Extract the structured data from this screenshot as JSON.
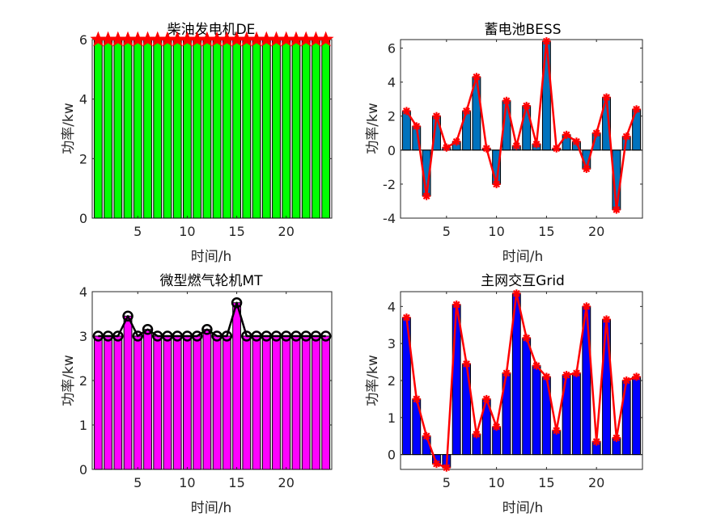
{
  "figure": {
    "background": "#ffffff"
  },
  "chart_data": [
    {
      "type": "bar",
      "title": "柴油发电机DE",
      "xlabel": "时间/h",
      "ylabel": "功率/kw",
      "x": [
        1,
        2,
        3,
        4,
        5,
        6,
        7,
        8,
        9,
        10,
        11,
        12,
        13,
        14,
        15,
        16,
        17,
        18,
        19,
        20,
        21,
        22,
        23,
        24
      ],
      "values": [
        6,
        6,
        6,
        6,
        6,
        6,
        6,
        6,
        6,
        6,
        6,
        6,
        6,
        6,
        6,
        6,
        6,
        6,
        6,
        6,
        6,
        6,
        6,
        6
      ],
      "xlim": [
        0.4,
        24.6
      ],
      "ylim": [
        0,
        6
      ],
      "xticks": [
        5,
        10,
        15,
        20
      ],
      "yticks": [
        0,
        2,
        4,
        6
      ],
      "bar_color": "#00ff00",
      "line_color": "#ff0000",
      "marker": "star"
    },
    {
      "type": "bar",
      "title": "蓄电池BESS",
      "xlabel": "时间/h",
      "ylabel": "功率/kw",
      "x": [
        1,
        2,
        3,
        4,
        5,
        6,
        7,
        8,
        9,
        10,
        11,
        12,
        13,
        14,
        15,
        16,
        17,
        18,
        19,
        20,
        21,
        22,
        23,
        24
      ],
      "values": [
        2.3,
        1.4,
        -2.7,
        2.0,
        0.15,
        0.5,
        2.3,
        4.3,
        0.1,
        -2.0,
        2.9,
        0.25,
        2.6,
        0.35,
        6.4,
        0.1,
        0.9,
        0.5,
        -1.1,
        1.0,
        3.1,
        -3.5,
        0.8,
        2.4
      ],
      "xlim": [
        0.4,
        24.6
      ],
      "ylim": [
        -4,
        6.5
      ],
      "xticks": [
        5,
        10,
        15,
        20
      ],
      "yticks": [
        -4,
        -2,
        0,
        2,
        4,
        6
      ],
      "bar_color": "#0072bd",
      "line_color": "#ff0000",
      "marker": "asterisk"
    },
    {
      "type": "bar",
      "title": "微型燃气轮机MT",
      "xlabel": "时间/h",
      "ylabel": "功率/kw",
      "x": [
        1,
        2,
        3,
        4,
        5,
        6,
        7,
        8,
        9,
        10,
        11,
        12,
        13,
        14,
        15,
        16,
        17,
        18,
        19,
        20,
        21,
        22,
        23,
        24
      ],
      "values": [
        3,
        3,
        3,
        3.45,
        3,
        3.15,
        3,
        3,
        3,
        3,
        3,
        3.15,
        3,
        3,
        3.75,
        3,
        3,
        3,
        3,
        3,
        3,
        3,
        3,
        3
      ],
      "xlim": [
        0.4,
        24.6
      ],
      "ylim": [
        0,
        4
      ],
      "xticks": [
        5,
        10,
        15,
        20
      ],
      "yticks": [
        0,
        1,
        2,
        3,
        4
      ],
      "bar_color": "#ff00ff",
      "line_color": "#000000",
      "marker": "circle"
    },
    {
      "type": "bar",
      "title": "主网交互Grid",
      "xlabel": "时间/h",
      "ylabel": "功率/kw",
      "x": [
        1,
        2,
        3,
        4,
        5,
        6,
        7,
        8,
        9,
        10,
        11,
        12,
        13,
        14,
        15,
        16,
        17,
        18,
        19,
        20,
        21,
        22,
        23,
        24
      ],
      "values": [
        3.7,
        1.5,
        0.5,
        -0.25,
        -0.35,
        4.05,
        2.45,
        0.55,
        1.5,
        0.75,
        2.2,
        4.35,
        3.15,
        2.4,
        2.1,
        0.65,
        2.15,
        2.2,
        4.0,
        0.35,
        3.65,
        0.45,
        2.0,
        2.1
      ],
      "xlim": [
        0.4,
        24.6
      ],
      "ylim": [
        -0.4,
        4.4
      ],
      "xticks": [
        5,
        10,
        15,
        20
      ],
      "yticks": [
        0,
        1,
        2,
        3,
        4
      ],
      "bar_color": "#0000ff",
      "line_color": "#ff0000",
      "marker": "asterisk"
    }
  ]
}
